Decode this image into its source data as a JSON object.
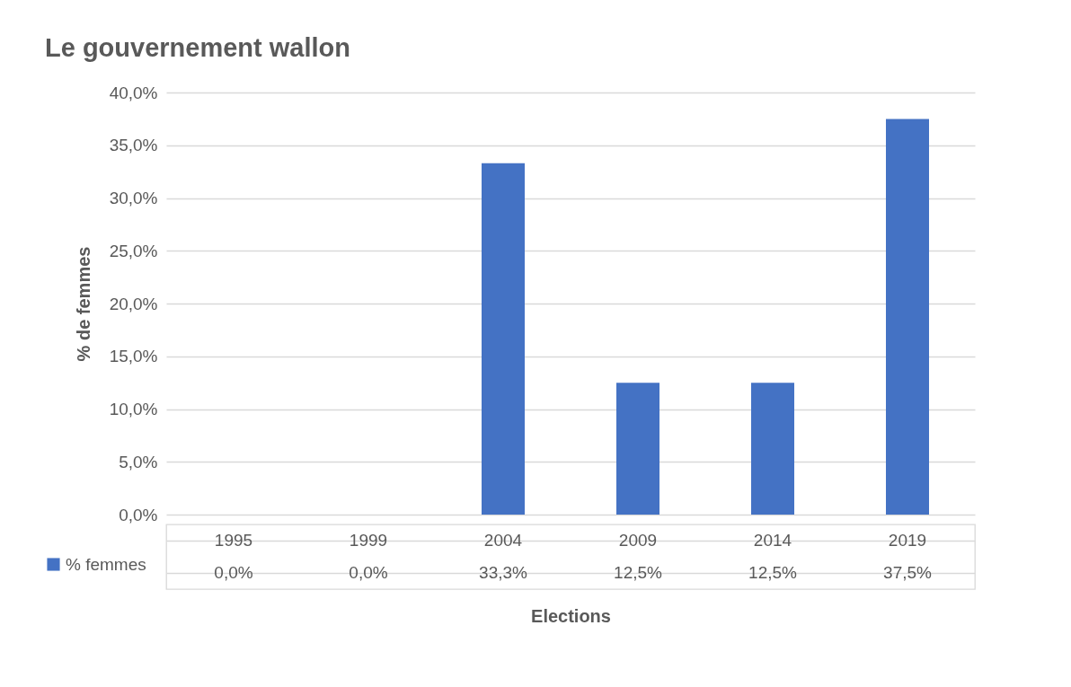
{
  "chart_data": {
    "type": "bar",
    "title": "Le gouvernement wallon",
    "xlabel": "Elections",
    "ylabel": "% de femmes",
    "categories": [
      "1995",
      "1999",
      "2004",
      "2009",
      "2014",
      "2019"
    ],
    "series": [
      {
        "name": "% femmes",
        "color": "#4472c4",
        "values": [
          0,
          0,
          33.3,
          12.5,
          12.5,
          37.5
        ],
        "value_labels": [
          "0,0%",
          "0,0%",
          "33,3%",
          "12,5%",
          "12,5%",
          "37,5%"
        ]
      }
    ],
    "ylim": [
      0,
      40
    ],
    "yticks": [
      {
        "value": 0,
        "label": "0,0%"
      },
      {
        "value": 5,
        "label": "5,0%"
      },
      {
        "value": 10,
        "label": "10,0%"
      },
      {
        "value": 15,
        "label": "15,0%"
      },
      {
        "value": 20,
        "label": "20,0%"
      },
      {
        "value": 25,
        "label": "25,0%"
      },
      {
        "value": 30,
        "label": "30,0%"
      },
      {
        "value": 35,
        "label": "35,0%"
      },
      {
        "value": 40,
        "label": "40,0%"
      }
    ],
    "grid": "y",
    "legend": "bottom"
  }
}
